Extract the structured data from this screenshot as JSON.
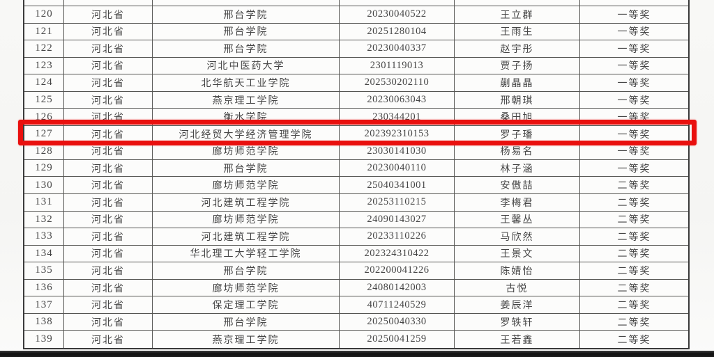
{
  "table": {
    "province_label": "河北省",
    "highlighted_row_no": "127",
    "highlight_color": "#e9100e",
    "award_levels": {
      "first": "一等奖",
      "second": "二等奖"
    },
    "rows": [
      {
        "no": "120",
        "province": "河北省",
        "school": "邢台学院",
        "id": "20230040522",
        "name": "王立群",
        "award": "一等奖"
      },
      {
        "no": "121",
        "province": "河北省",
        "school": "邢台学院",
        "id": "20251280104",
        "name": "王雨生",
        "award": "一等奖"
      },
      {
        "no": "122",
        "province": "河北省",
        "school": "邢台学院",
        "id": "20230040337",
        "name": "赵宇彤",
        "award": "一等奖"
      },
      {
        "no": "123",
        "province": "河北省",
        "school": "河北中医药大学",
        "id": "2301119013",
        "name": "贾子扬",
        "award": "一等奖"
      },
      {
        "no": "124",
        "province": "河北省",
        "school": "北华航天工业学院",
        "id": "202530202110",
        "name": "蒯晶晶",
        "award": "一等奖"
      },
      {
        "no": "125",
        "province": "河北省",
        "school": "燕京理工学院",
        "id": "20230063043",
        "name": "邢朝琪",
        "award": "一等奖"
      },
      {
        "no": "126",
        "province": "河北省",
        "school": "衡水学院",
        "id": "230344201",
        "name": "桑田旭",
        "award": "一等奖"
      },
      {
        "no": "127",
        "province": "河北省",
        "school": "河北经贸大学经济管理学院",
        "id": "202392310153",
        "name": "罗子璠",
        "award": "一等奖"
      },
      {
        "no": "128",
        "province": "河北省",
        "school": "廊坊师范学院",
        "id": "23030141030",
        "name": "杨易名",
        "award": "一等奖"
      },
      {
        "no": "129",
        "province": "河北省",
        "school": "邢台学院",
        "id": "20230040110",
        "name": "林子涵",
        "award": "一等奖"
      },
      {
        "no": "130",
        "province": "河北省",
        "school": "廊坊师范学院",
        "id": "25040341001",
        "name": "安傲喆",
        "award": "二等奖"
      },
      {
        "no": "131",
        "province": "河北省",
        "school": "河北建筑工程学院",
        "id": "20253110215",
        "name": "李梅君",
        "award": "二等奖"
      },
      {
        "no": "132",
        "province": "河北省",
        "school": "廊坊师范学院",
        "id": "24090143027",
        "name": "王馨丛",
        "award": "二等奖"
      },
      {
        "no": "133",
        "province": "河北省",
        "school": "河北建筑工程学院",
        "id": "20233110226",
        "name": "马欣然",
        "award": "二等奖"
      },
      {
        "no": "134",
        "province": "河北省",
        "school": "华北理工大学轻工学院",
        "id": "202324310422",
        "name": "王景文",
        "award": "二等奖"
      },
      {
        "no": "135",
        "province": "河北省",
        "school": "邢台学院",
        "id": "202200041226",
        "name": "陈婧怡",
        "award": "二等奖"
      },
      {
        "no": "136",
        "province": "河北省",
        "school": "廊坊师范学院",
        "id": "24080142003",
        "name": "古悦",
        "award": "二等奖"
      },
      {
        "no": "137",
        "province": "河北省",
        "school": "保定理工学院",
        "id": "40711240529",
        "name": "姜辰洋",
        "award": "二等奖"
      },
      {
        "no": "138",
        "province": "河北省",
        "school": "邢台学院",
        "id": "20250040330",
        "name": "罗轶轩",
        "award": "二等奖"
      },
      {
        "no": "139",
        "province": "河北省",
        "school": "燕京理工学院",
        "id": "20250041259",
        "name": "王若鑫",
        "award": "二等奖"
      }
    ]
  }
}
